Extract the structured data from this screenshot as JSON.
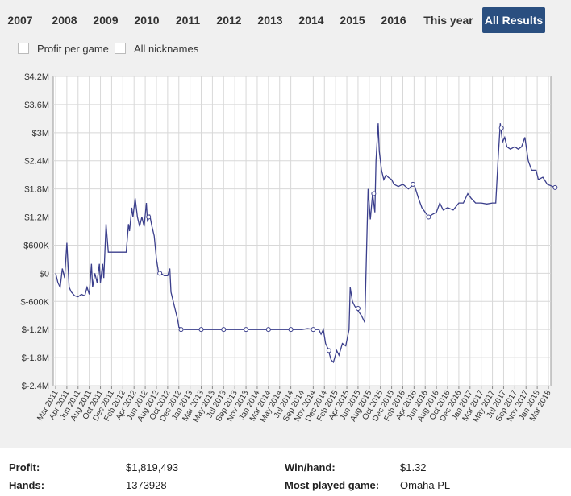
{
  "tabs": [
    "2007",
    "2008",
    "2009",
    "2010",
    "2011",
    "2012",
    "2013",
    "2014",
    "2015",
    "2016",
    "This year",
    "All Results"
  ],
  "active_tab": "All Results",
  "options": {
    "profit_per_game": "Profit per game",
    "all_nicknames": "All nicknames"
  },
  "chart_data": {
    "type": "line",
    "x_labels": [
      "Mar 2011",
      "Apr 2011",
      "Jun 2011",
      "Aug 2011",
      "Oct 2011",
      "Dec 2011",
      "Feb 2012",
      "Apr 2012",
      "Jun 2012",
      "Aug 2012",
      "Oct 2012",
      "Dec 2012",
      "Jan 2013",
      "Mar 2013",
      "May 2013",
      "Jul 2013",
      "Sep 2013",
      "Nov 2013",
      "Jan 2014",
      "Mar 2014",
      "May 2014",
      "Jul 2014",
      "Sep 2014",
      "Nov 2014",
      "Dec 2014",
      "Feb 2015",
      "Apr 2015",
      "Jun 2015",
      "Aug 2015",
      "Oct 2015",
      "Dec 2015",
      "Feb 2016",
      "Apr 2016",
      "Jun 2016",
      "Aug 2016",
      "Oct 2016",
      "Dec 2016",
      "Jan 2017",
      "Mar 2017",
      "May 2017",
      "Jul 2017",
      "Sep 2017",
      "Nov 2017",
      "Jan 2018",
      "Mar 2018"
    ],
    "y_ticks": [
      "$4.2M",
      "$3.6M",
      "$3M",
      "$2.4M",
      "$1.8M",
      "$1.2M",
      "$600K",
      "$0",
      "$-600K",
      "$-1.2M",
      "$-1.8M",
      "$-2.4M"
    ],
    "ylim": [
      -2400000,
      4200000
    ],
    "series": [
      {
        "color": "#3b3f8c",
        "points": [
          [
            0.0,
            0
          ],
          [
            0.2,
            -200000
          ],
          [
            0.4,
            -300000
          ],
          [
            0.6,
            100000
          ],
          [
            0.8,
            -100000
          ],
          [
            1.0,
            650000
          ],
          [
            1.2,
            -300000
          ],
          [
            1.4,
            -400000
          ],
          [
            1.7,
            -480000
          ],
          [
            2.0,
            -500000
          ],
          [
            2.3,
            -450000
          ],
          [
            2.6,
            -480000
          ],
          [
            2.8,
            -300000
          ],
          [
            3.0,
            -450000
          ],
          [
            3.2,
            200000
          ],
          [
            3.3,
            -300000
          ],
          [
            3.5,
            0
          ],
          [
            3.7,
            -200000
          ],
          [
            3.9,
            200000
          ],
          [
            4.0,
            -200000
          ],
          [
            4.2,
            200000
          ],
          [
            4.3,
            -100000
          ],
          [
            4.5,
            1050000
          ],
          [
            4.7,
            450000
          ],
          [
            5.0,
            450000
          ],
          [
            5.5,
            450000
          ],
          [
            6.0,
            450000
          ],
          [
            6.3,
            450000
          ],
          [
            6.5,
            1050000
          ],
          [
            6.6,
            900000
          ],
          [
            6.8,
            1400000
          ],
          [
            6.9,
            1200000
          ],
          [
            7.1,
            1600000
          ],
          [
            7.3,
            1200000
          ],
          [
            7.5,
            1000000
          ],
          [
            7.7,
            1200000
          ],
          [
            7.9,
            1000000
          ],
          [
            8.1,
            1500000
          ],
          [
            8.2,
            1100000
          ],
          [
            8.4,
            1250000
          ],
          [
            8.6,
            1000000
          ],
          [
            8.8,
            800000
          ],
          [
            9.0,
            300000
          ],
          [
            9.2,
            0
          ],
          [
            9.4,
            0
          ],
          [
            9.7,
            -50000
          ],
          [
            10.0,
            -50000
          ],
          [
            10.2,
            100000
          ],
          [
            10.3,
            -400000
          ],
          [
            10.5,
            -600000
          ],
          [
            10.7,
            -800000
          ],
          [
            10.9,
            -1000000
          ],
          [
            11.0,
            -1150000
          ],
          [
            11.5,
            -1200000
          ],
          [
            12.0,
            -1200000
          ],
          [
            13.0,
            -1200000
          ],
          [
            14.0,
            -1200000
          ],
          [
            15.0,
            -1200000
          ],
          [
            16.0,
            -1200000
          ],
          [
            17.0,
            -1200000
          ],
          [
            18.0,
            -1200000
          ],
          [
            19.0,
            -1200000
          ],
          [
            20.0,
            -1200000
          ],
          [
            21.0,
            -1200000
          ],
          [
            22.0,
            -1200000
          ],
          [
            22.5,
            -1180000
          ],
          [
            23.0,
            -1200000
          ],
          [
            23.5,
            -1200000
          ],
          [
            23.7,
            -1300000
          ],
          [
            23.9,
            -1200000
          ],
          [
            24.1,
            -1500000
          ],
          [
            24.3,
            -1600000
          ],
          [
            24.6,
            -1850000
          ],
          [
            24.8,
            -1900000
          ],
          [
            25.1,
            -1650000
          ],
          [
            25.3,
            -1750000
          ],
          [
            25.6,
            -1500000
          ],
          [
            25.9,
            -1550000
          ],
          [
            26.2,
            -1200000
          ],
          [
            26.3,
            -300000
          ],
          [
            26.5,
            -600000
          ],
          [
            26.7,
            -700000
          ],
          [
            27.0,
            -800000
          ],
          [
            27.3,
            -900000
          ],
          [
            27.6,
            -1050000
          ],
          [
            27.9,
            1800000
          ],
          [
            28.1,
            1150000
          ],
          [
            28.3,
            1700000
          ],
          [
            28.5,
            1300000
          ],
          [
            28.6,
            2400000
          ],
          [
            28.8,
            3200000
          ],
          [
            28.9,
            2600000
          ],
          [
            29.1,
            2200000
          ],
          [
            29.3,
            2000000
          ],
          [
            29.5,
            2100000
          ],
          [
            29.7,
            2050000
          ],
          [
            30.0,
            2000000
          ],
          [
            30.2,
            1900000
          ],
          [
            30.6,
            1850000
          ],
          [
            31.0,
            1900000
          ],
          [
            31.5,
            1800000
          ],
          [
            32.0,
            1900000
          ],
          [
            32.4,
            1600000
          ],
          [
            32.7,
            1400000
          ],
          [
            33.0,
            1300000
          ],
          [
            33.3,
            1200000
          ],
          [
            33.6,
            1250000
          ],
          [
            34.0,
            1300000
          ],
          [
            34.3,
            1500000
          ],
          [
            34.6,
            1350000
          ],
          [
            35.0,
            1400000
          ],
          [
            35.5,
            1350000
          ],
          [
            36.0,
            1500000
          ],
          [
            36.4,
            1500000
          ],
          [
            36.8,
            1700000
          ],
          [
            37.1,
            1600000
          ],
          [
            37.5,
            1500000
          ],
          [
            38.0,
            1500000
          ],
          [
            38.5,
            1480000
          ],
          [
            39.0,
            1500000
          ],
          [
            39.3,
            1500000
          ],
          [
            39.5,
            2400000
          ],
          [
            39.7,
            3200000
          ],
          [
            39.9,
            2800000
          ],
          [
            40.1,
            2900000
          ],
          [
            40.3,
            2700000
          ],
          [
            40.6,
            2650000
          ],
          [
            41.0,
            2700000
          ],
          [
            41.3,
            2650000
          ],
          [
            41.6,
            2700000
          ],
          [
            41.9,
            2900000
          ],
          [
            42.2,
            2400000
          ],
          [
            42.5,
            2200000
          ],
          [
            42.9,
            2200000
          ],
          [
            43.1,
            2000000
          ],
          [
            43.5,
            2050000
          ],
          [
            43.9,
            1900000
          ],
          [
            44.4,
            1850000
          ],
          [
            44.6,
            1830000
          ]
        ],
        "markers": [
          [
            8.3,
            1200000
          ],
          [
            9.3,
            0
          ],
          [
            11.2,
            -1200000
          ],
          [
            13.0,
            -1200000
          ],
          [
            15.0,
            -1200000
          ],
          [
            17.0,
            -1200000
          ],
          [
            19.0,
            -1200000
          ],
          [
            21.0,
            -1200000
          ],
          [
            23.0,
            -1200000
          ],
          [
            24.4,
            -1650000
          ],
          [
            27.0,
            -750000
          ],
          [
            28.4,
            1700000
          ],
          [
            31.9,
            1900000
          ],
          [
            33.3,
            1200000
          ],
          [
            39.8,
            3100000
          ],
          [
            44.6,
            1830000
          ]
        ]
      }
    ]
  },
  "stats": {
    "profit_label": "Profit:",
    "profit_value": "$1,819,493",
    "hands_label": "Hands:",
    "hands_value": "1373928",
    "winhand_label": "Win/hand:",
    "winhand_value": "$1.32",
    "mostplayed_label": "Most played game:",
    "mostplayed_value": "Omaha PL"
  }
}
